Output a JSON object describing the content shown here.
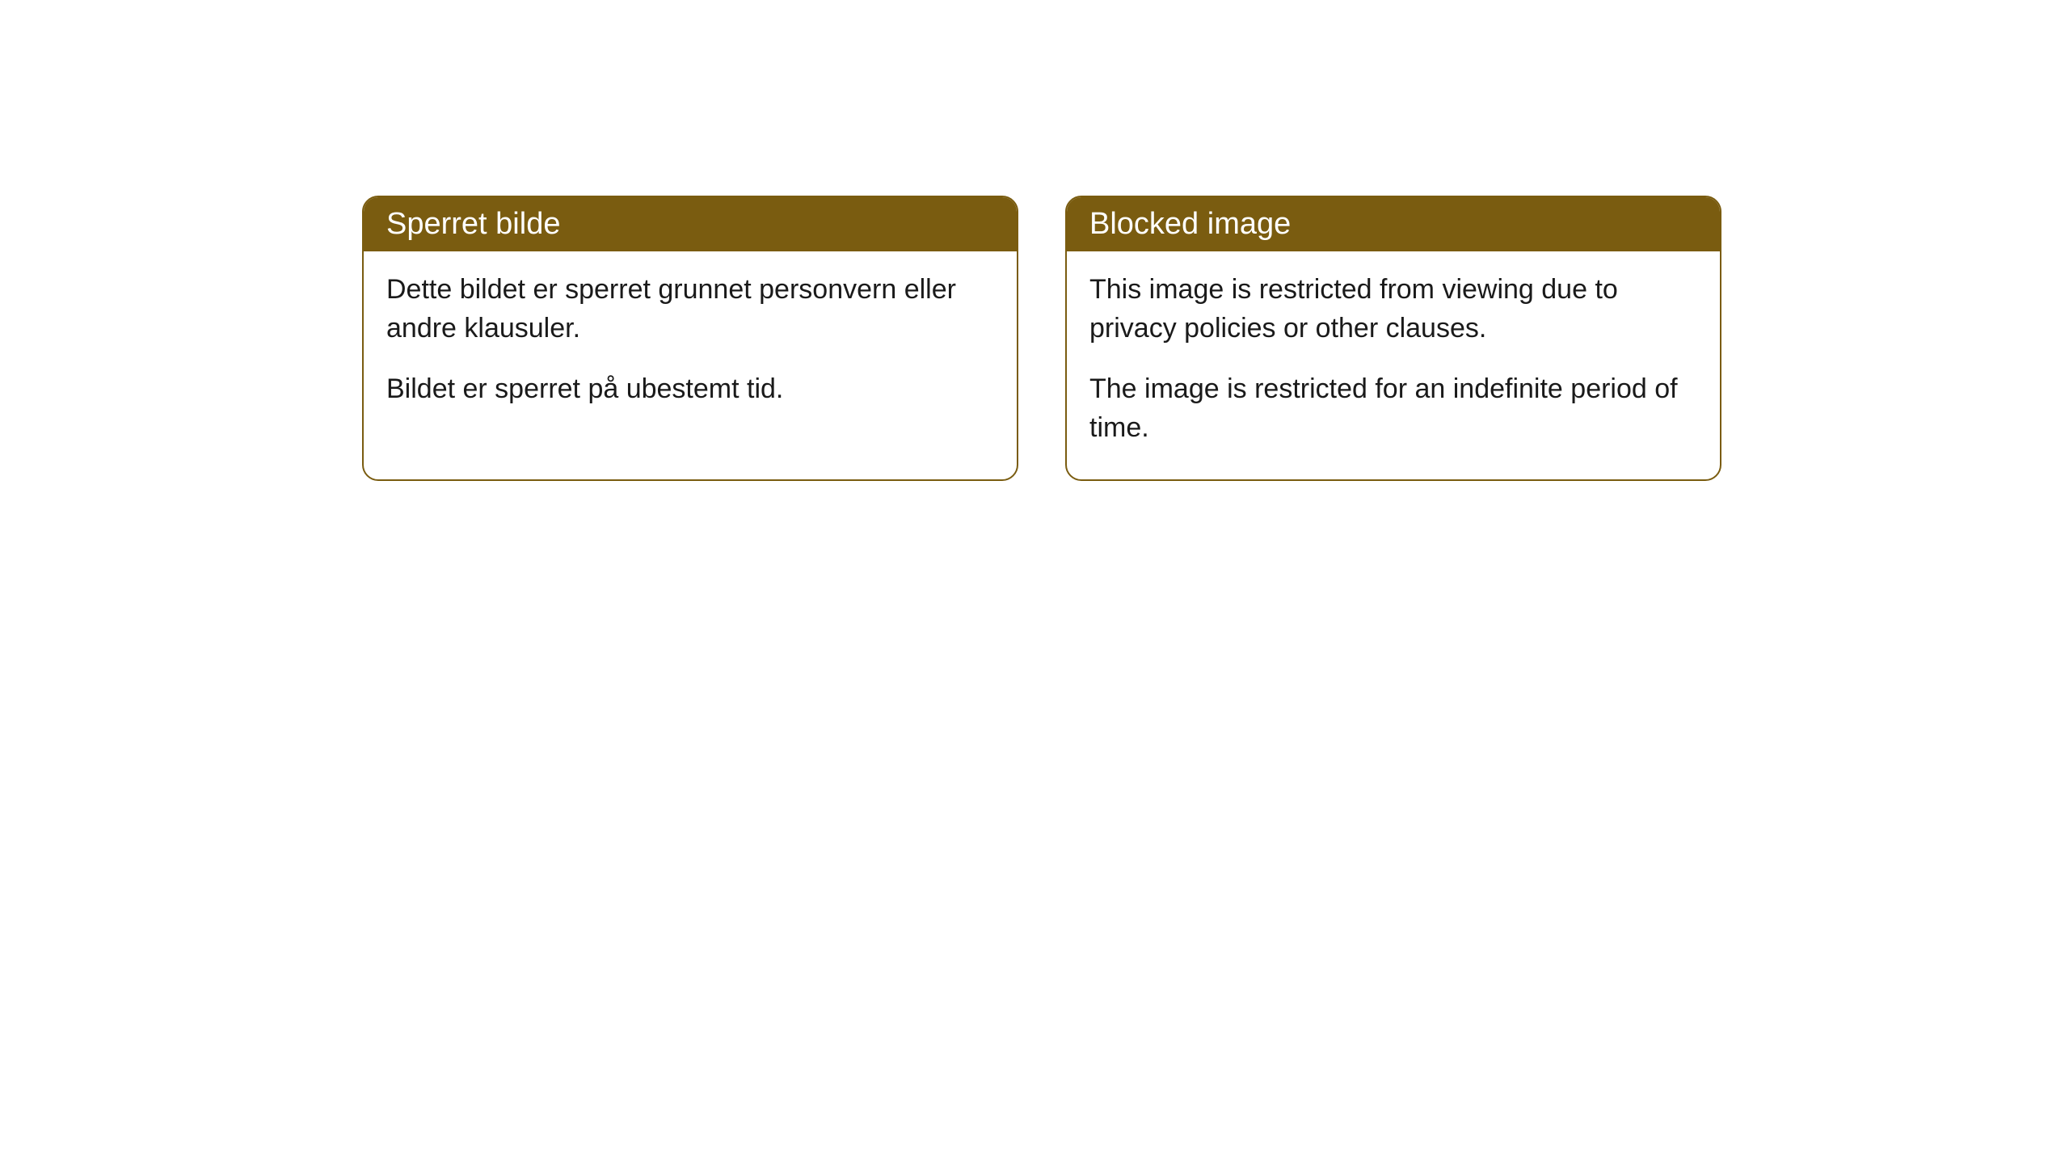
{
  "cards": [
    {
      "title": "Sperret bilde",
      "paragraph1": "Dette bildet er sperret grunnet personvern eller andre klausuler.",
      "paragraph2": "Bildet er sperret på ubestemt tid."
    },
    {
      "title": "Blocked image",
      "paragraph1": "This image is restricted from viewing due to privacy policies or other clauses.",
      "paragraph2": "The image is restricted for an indefinite period of time."
    }
  ],
  "style": {
    "header_background": "#7a5c10",
    "header_text_color": "#ffffff",
    "border_color": "#7a5c10",
    "body_background": "#ffffff",
    "body_text_color": "#1a1a1a",
    "border_radius": 20,
    "title_fontsize": 38,
    "body_fontsize": 34
  }
}
